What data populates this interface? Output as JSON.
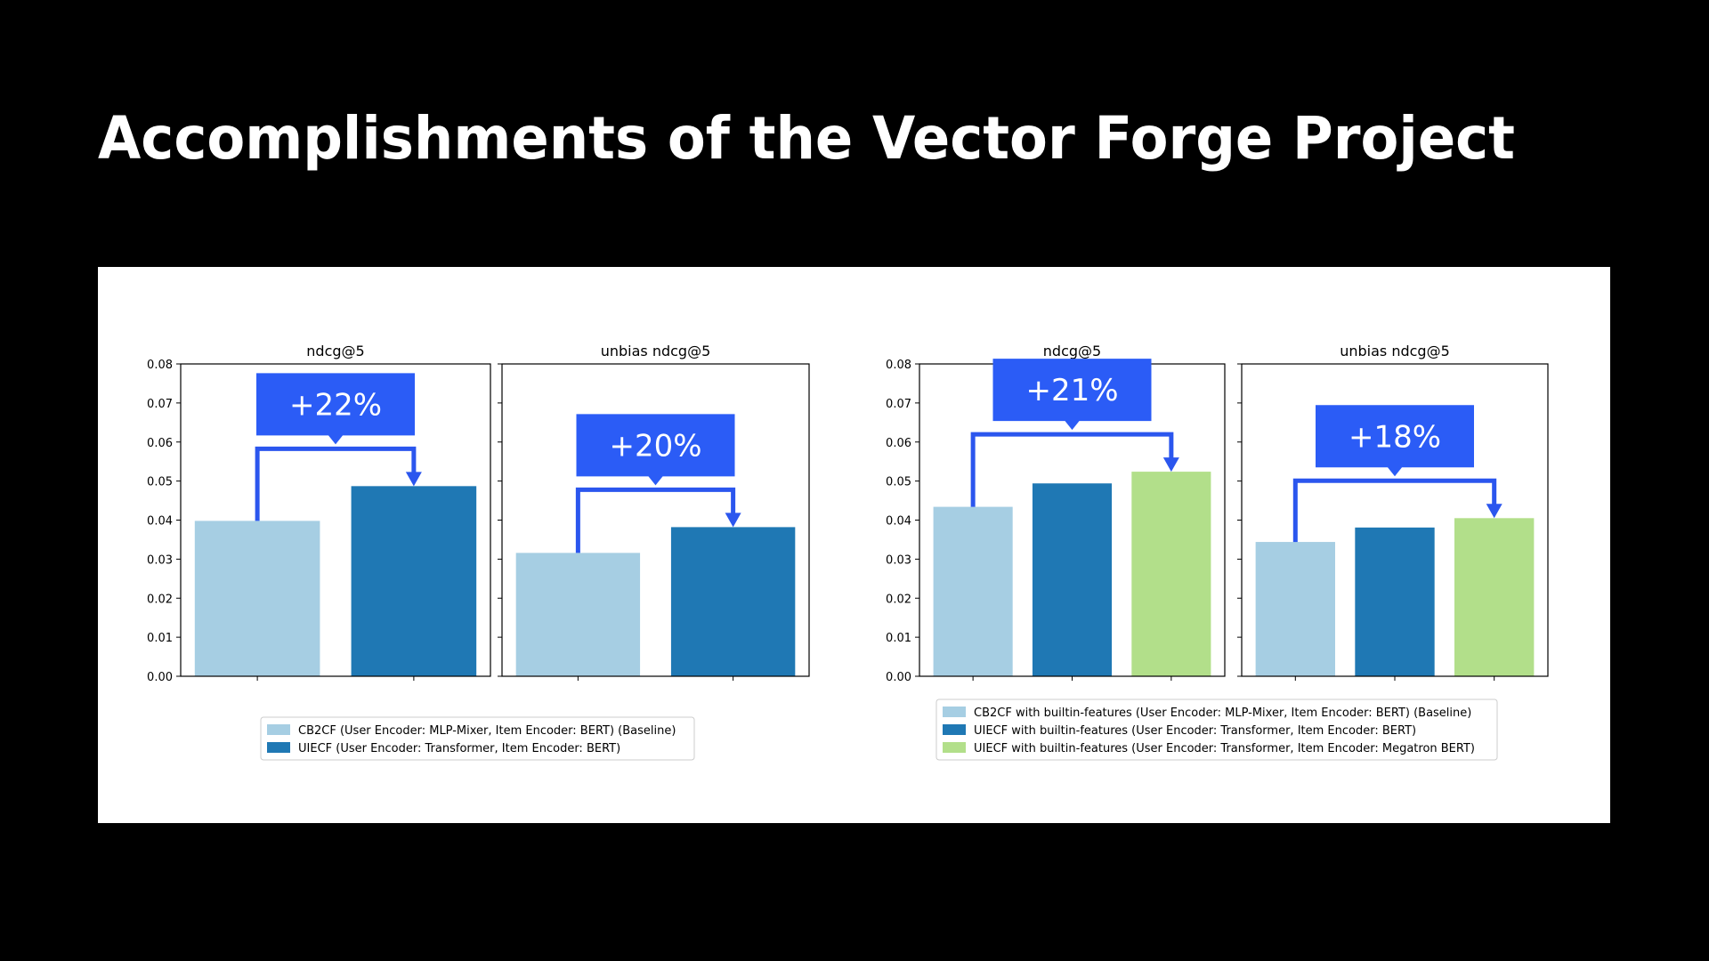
{
  "title": "Accomplishments of the Vector Forge Project",
  "chart_data": [
    {
      "type": "bar",
      "title": "ndcg@5",
      "categories": [
        null,
        null
      ],
      "values": [
        0.0398,
        0.0487
      ],
      "colors": [
        "#a6cee3",
        "#1f78b4"
      ],
      "ylim": [
        0,
        0.08
      ],
      "yticks": [
        {
          "value": 0,
          "label": "0.00"
        },
        0.01,
        0.02,
        0.03,
        0.04,
        0.05,
        0.06,
        0.07,
        0.08
      ],
      "ytick_labels": true,
      "annotation": "+22%"
    },
    {
      "type": "bar",
      "title": "unbias ndcg@5",
      "categories": [
        null,
        null
      ],
      "values": [
        0.0316,
        0.0382
      ],
      "colors": [
        "#a6cee3",
        "#1f78b4"
      ],
      "ylim": [
        0,
        0.08
      ],
      "yticks": [
        0,
        0.01,
        0.02,
        0.03,
        0.04,
        0.05,
        0.06,
        0.07,
        0.08
      ],
      "ytick_labels": false,
      "annotation": "+20%"
    },
    {
      "type": "bar",
      "title": "ndcg@5",
      "categories": [
        null,
        null,
        null
      ],
      "values": [
        0.0434,
        0.0494,
        0.0524
      ],
      "colors": [
        "#a6cee3",
        "#1f78b4",
        "#b2df8a"
      ],
      "ylim": [
        0,
        0.08
      ],
      "yticks": [
        {
          "value": 0,
          "label": "0.00"
        },
        0.01,
        0.02,
        0.03,
        0.04,
        0.05,
        0.06,
        0.07,
        0.08
      ],
      "ytick_labels": true,
      "annotation": "+21%"
    },
    {
      "type": "bar",
      "title": "unbias ndcg@5",
      "categories": [
        null,
        null,
        null
      ],
      "values": [
        0.0344,
        0.0381,
        0.0405
      ],
      "colors": [
        "#a6cee3",
        "#1f78b4",
        "#b2df8a"
      ],
      "ylim": [
        0,
        0.08
      ],
      "yticks": [
        0,
        0.01,
        0.02,
        0.03,
        0.04,
        0.05,
        0.06,
        0.07,
        0.08
      ],
      "ytick_labels": false,
      "annotation": "+18%"
    }
  ],
  "legends": [
    {
      "entries": [
        {
          "name": "CB2CF (User Encoder: MLP-Mixer, Item Encoder: BERT) (Baseline)",
          "color": "#a6cee3"
        },
        {
          "name": "UIECF (User Encoder: Transformer, Item Encoder: BERT)",
          "color": "#1f78b4"
        }
      ]
    },
    {
      "entries": [
        {
          "name": "CB2CF with builtin-features (User Encoder: MLP-Mixer, Item Encoder: BERT) (Baseline)",
          "color": "#a6cee3"
        },
        {
          "name": "UIECF with builtin-features (User Encoder: Transformer, Item Encoder: BERT)",
          "color": "#1f78b4"
        },
        {
          "name": "UIECF with builtin-features (User Encoder: Transformer, Item Encoder: Megatron BERT)",
          "color": "#b2df8a"
        }
      ]
    }
  ]
}
